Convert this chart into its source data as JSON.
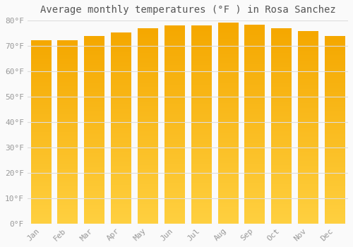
{
  "title": "Average monthly temperatures (°F ) in Rosa Sanchez",
  "months": [
    "Jan",
    "Feb",
    "Mar",
    "Apr",
    "May",
    "Jun",
    "Jul",
    "Aug",
    "Sep",
    "Oct",
    "Nov",
    "Dec"
  ],
  "values": [
    72.2,
    72.2,
    73.8,
    75.2,
    77.0,
    78.0,
    78.0,
    79.0,
    78.2,
    77.0,
    75.8,
    73.8
  ],
  "bar_color_bottom": "#FFD040",
  "bar_color_top": "#F5A800",
  "background_color": "#FAFAFA",
  "grid_color": "#DDDDDD",
  "text_color": "#999999",
  "title_color": "#555555",
  "ylim": [
    0,
    80
  ],
  "yticks": [
    0,
    10,
    20,
    30,
    40,
    50,
    60,
    70,
    80
  ],
  "title_fontsize": 10,
  "tick_fontsize": 8,
  "bar_width": 0.75
}
